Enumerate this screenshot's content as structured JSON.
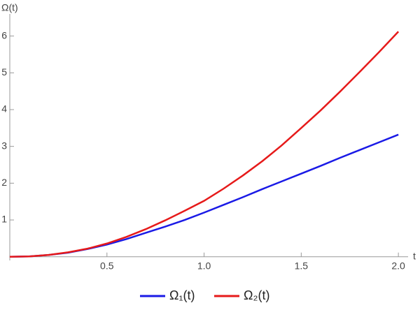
{
  "chart_data": {
    "type": "line",
    "y_label": "Ω(t)",
    "x_label": "t",
    "x": [
      0,
      0.1,
      0.2,
      0.3,
      0.4,
      0.5,
      0.6,
      0.7,
      0.8,
      0.9,
      1.0,
      1.1,
      1.2,
      1.3,
      1.4,
      1.5,
      1.6,
      1.7,
      1.8,
      1.9,
      2.0
    ],
    "series": [
      {
        "name": "Ω₁(t)",
        "color": "#1a1ae6",
        "values": [
          0,
          0.01,
          0.05,
          0.11,
          0.21,
          0.33,
          0.48,
          0.65,
          0.82,
          1.0,
          1.2,
          1.41,
          1.62,
          1.84,
          2.05,
          2.26,
          2.47,
          2.69,
          2.9,
          3.11,
          3.32
        ]
      },
      {
        "name": "Ω₂(t)",
        "color": "#e61a1a",
        "values": [
          0,
          0.01,
          0.05,
          0.12,
          0.22,
          0.36,
          0.54,
          0.75,
          0.99,
          1.25,
          1.52,
          1.85,
          2.21,
          2.6,
          3.03,
          3.5,
          3.98,
          4.49,
          5.02,
          5.56,
          6.12
        ]
      }
    ],
    "xlim": [
      0,
      2.05
    ],
    "ylim": [
      -0.1,
      6.6
    ],
    "xticks": [
      0.5,
      {
        "value": 1,
        "label": "1.0"
      },
      1.5,
      {
        "value": 2,
        "label": "2.0"
      }
    ],
    "yticks": [
      1,
      2,
      3,
      4,
      5,
      6
    ],
    "legend": "bottom"
  }
}
